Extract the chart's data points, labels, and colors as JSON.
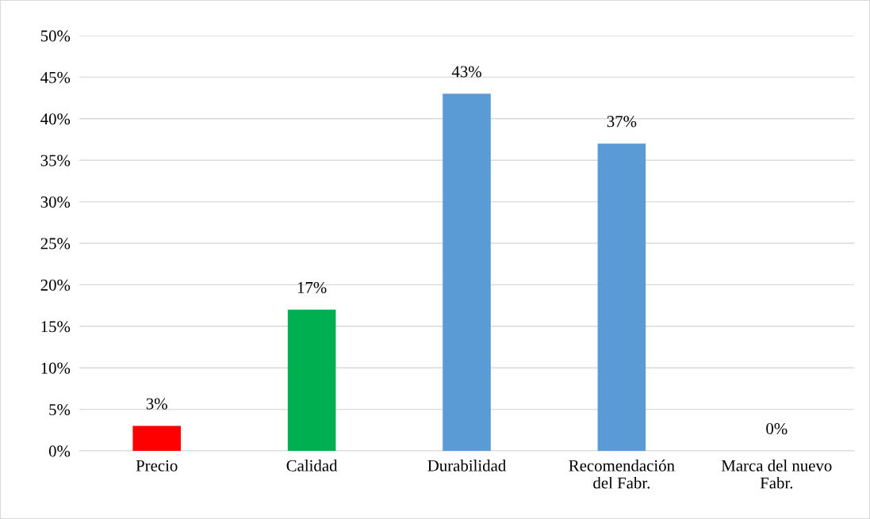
{
  "chart_data": {
    "type": "bar",
    "categories": [
      "Precio",
      "Calidad",
      "Durabilidad",
      "Recomendación del Fabr.",
      "Marca del nuevo Fabr."
    ],
    "values": [
      3,
      17,
      43,
      37,
      0
    ],
    "colors": [
      "#ff0000",
      "#00b050",
      "#5b9bd5",
      "#5b9bd5",
      "#5b9bd5"
    ],
    "value_labels": [
      "3%",
      "17%",
      "43%",
      "37%",
      "0%"
    ],
    "ylim": [
      0,
      50
    ],
    "yticks": [
      {
        "value": 0,
        "label": "0%"
      },
      {
        "value": 5,
        "label": "5%"
      },
      {
        "value": 10,
        "label": "10%"
      },
      {
        "value": 15,
        "label": "15%"
      },
      {
        "value": 20,
        "label": "20%"
      },
      {
        "value": 25,
        "label": "25%"
      },
      {
        "value": 30,
        "label": "30%"
      },
      {
        "value": 35,
        "label": "35%"
      },
      {
        "value": 40,
        "label": "40%"
      },
      {
        "value": 45,
        "label": "45%"
      },
      {
        "value": 50,
        "label": "50%"
      }
    ],
    "grid": "y",
    "legend": false
  }
}
